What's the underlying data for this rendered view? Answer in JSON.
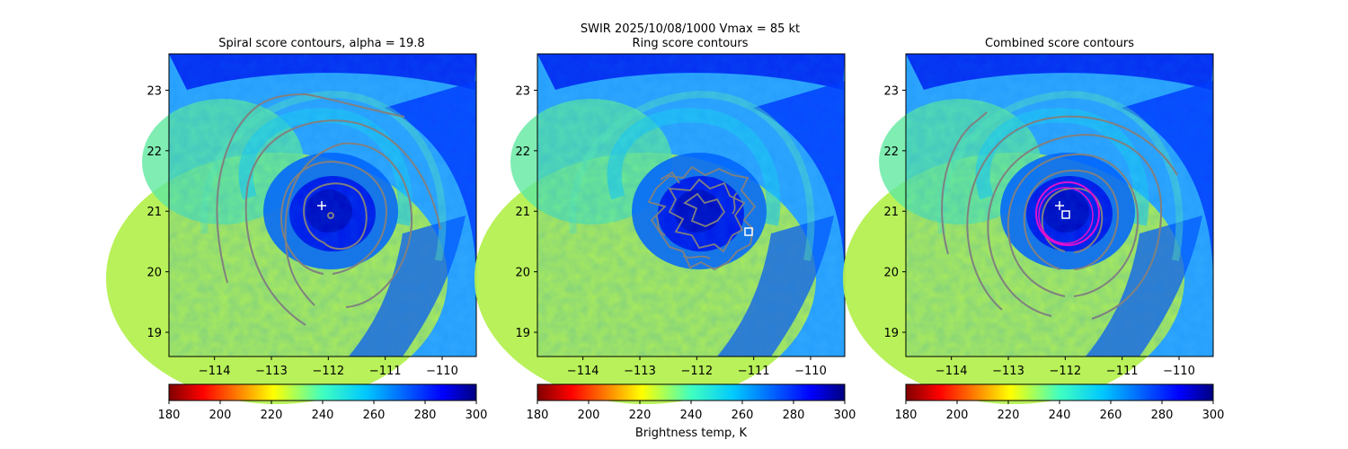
{
  "figure": {
    "suptitle_line1": "SWIR  2025/10/08/1000    Vmax = 85 kt",
    "colorbar_label": "Brightness temp, K"
  },
  "colors": {
    "contour": "#808080",
    "marker": "#ffffff",
    "ring_circle": "#e010d0",
    "colormap": "jet_r"
  },
  "chart_data": [
    {
      "type": "heatmap",
      "title": "Spiral score contours, alpha = 19.8",
      "xlim": [
        -114.8,
        -109.4
      ],
      "ylim": [
        18.6,
        23.6
      ],
      "xticks": [
        -114,
        -113,
        -112,
        -111,
        -110
      ],
      "xtick_labels": [
        "−114",
        "−113",
        "−112",
        "−111",
        "−110"
      ],
      "yticks": [
        19,
        20,
        21,
        22,
        23
      ],
      "ytick_labels": [
        "19",
        "20",
        "21",
        "22",
        "23"
      ],
      "colorbar": {
        "range": [
          180,
          300
        ],
        "ticks": [
          "180",
          "200",
          "220",
          "240",
          "260",
          "280",
          "300"
        ]
      },
      "overlay": "spiral score contours (gray)",
      "markers": [
        {
          "shape": "plus",
          "lon": -112.1,
          "lat": 21.1
        }
      ]
    },
    {
      "type": "heatmap",
      "title": "Ring score contours",
      "xlim": [
        -114.8,
        -109.4
      ],
      "ylim": [
        18.6,
        23.6
      ],
      "xticks": [
        -114,
        -113,
        -112,
        -111,
        -110
      ],
      "xtick_labels": [
        "−114",
        "−113",
        "−112",
        "−111",
        "−110"
      ],
      "yticks": [
        19,
        20,
        21,
        22,
        23
      ],
      "ytick_labels": [
        "19",
        "20",
        "21",
        "22",
        "23"
      ],
      "colorbar": {
        "range": [
          180,
          300
        ],
        "ticks": [
          "180",
          "200",
          "220",
          "240",
          "260",
          "280",
          "300"
        ]
      },
      "overlay": "ring score contours (gray, noisy)",
      "markers": [
        {
          "shape": "square",
          "lon": -111.1,
          "lat": 20.65
        }
      ]
    },
    {
      "type": "heatmap",
      "title": "Combined score contours",
      "xlim": [
        -114.8,
        -109.4
      ],
      "ylim": [
        18.6,
        23.6
      ],
      "xticks": [
        -114,
        -113,
        -112,
        -111,
        -110
      ],
      "xtick_labels": [
        "−114",
        "−113",
        "−112",
        "−111",
        "−110"
      ],
      "yticks": [
        19,
        20,
        21,
        22,
        23
      ],
      "ytick_labels": [
        "19",
        "20",
        "21",
        "22",
        "23"
      ],
      "colorbar": {
        "range": [
          180,
          300
        ],
        "ticks": [
          "180",
          "200",
          "220",
          "240",
          "260",
          "280",
          "300"
        ]
      },
      "overlay": "combined score contours (gray) with ring fit circle (magenta)",
      "markers": [
        {
          "shape": "plus",
          "lon": -112.1,
          "lat": 21.1
        },
        {
          "shape": "square",
          "lon": -111.95,
          "lat": 20.95
        }
      ]
    }
  ]
}
